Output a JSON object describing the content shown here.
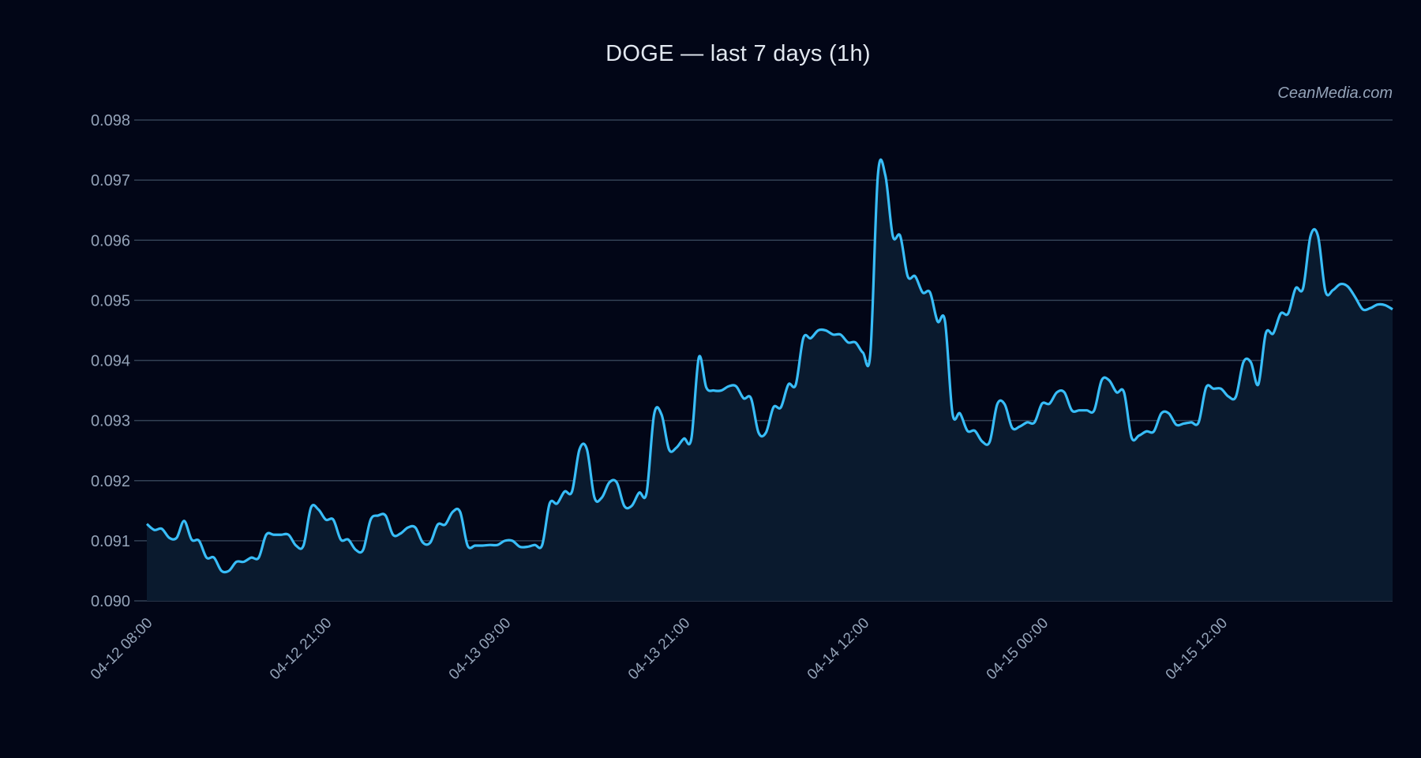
{
  "header": {
    "title": "DOGE — last 7 days (1h)",
    "watermark": "CeanMedia.com"
  },
  "colors": {
    "background": "#020617",
    "line": "#38bdf8",
    "area_fill": "#0a1a2e",
    "grid": "#334155",
    "tick_text": "#94a3b8",
    "title_text": "#e2e8f0"
  },
  "chart_data": {
    "type": "area",
    "title": "DOGE — last 7 days (1h)",
    "xlabel": "",
    "ylabel": "",
    "ylim": [
      0.09,
      0.098
    ],
    "grid": true,
    "legend": null,
    "y_ticks": [
      "0.090",
      "0.091",
      "0.092",
      "0.093",
      "0.094",
      "0.095",
      "0.096",
      "0.097",
      "0.098"
    ],
    "x_ticks": [
      {
        "label": "04-12 08:00",
        "pos": 0.0
      },
      {
        "label": "04-12 21:00",
        "pos": 0.1438
      },
      {
        "label": "04-13 09:00",
        "pos": 0.2876
      },
      {
        "label": "04-13 21:00",
        "pos": 0.4315
      },
      {
        "label": "04-14 12:00",
        "pos": 0.5753
      },
      {
        "label": "04-15 00:00",
        "pos": 0.7191
      },
      {
        "label": "04-15 12:00",
        "pos": 0.8629
      }
    ],
    "series": [
      {
        "name": "DOGE",
        "values": [
          0.09128,
          0.09118,
          0.0912,
          0.09105,
          0.09105,
          0.09133,
          0.09102,
          0.091,
          0.09072,
          0.09072,
          0.0905,
          0.0905,
          0.09065,
          0.09065,
          0.09072,
          0.09072,
          0.0911,
          0.0911,
          0.0911,
          0.0911,
          0.09092,
          0.09092,
          0.09155,
          0.09152,
          0.09135,
          0.09135,
          0.09102,
          0.09102,
          0.09085,
          0.09085,
          0.09135,
          0.09142,
          0.09142,
          0.0911,
          0.09112,
          0.09122,
          0.09122,
          0.09097,
          0.09097,
          0.09127,
          0.09127,
          0.09148,
          0.09148,
          0.09092,
          0.09092,
          0.09092,
          0.09093,
          0.09093,
          0.091,
          0.091,
          0.0909,
          0.0909,
          0.09093,
          0.09093,
          0.09162,
          0.09162,
          0.09182,
          0.09182,
          0.09252,
          0.09252,
          0.09172,
          0.09172,
          0.09197,
          0.09197,
          0.09158,
          0.09158,
          0.0918,
          0.0918,
          0.0931,
          0.0931,
          0.09252,
          0.09255,
          0.0927,
          0.0927,
          0.09405,
          0.09355,
          0.0935,
          0.0935,
          0.09357,
          0.09357,
          0.09337,
          0.09337,
          0.0928,
          0.0928,
          0.09322,
          0.09322,
          0.0936,
          0.0936,
          0.09437,
          0.09437,
          0.0945,
          0.0945,
          0.09443,
          0.09443,
          0.0943,
          0.0943,
          0.09413,
          0.09413,
          0.09708,
          0.09708,
          0.09607,
          0.09607,
          0.0954,
          0.0954,
          0.09513,
          0.09513,
          0.09465,
          0.09465,
          0.09312,
          0.09312,
          0.09283,
          0.09283,
          0.09265,
          0.09265,
          0.09327,
          0.09327,
          0.09288,
          0.0929,
          0.09297,
          0.09297,
          0.09328,
          0.09328,
          0.09347,
          0.09347,
          0.09317,
          0.09317,
          0.09317,
          0.09317,
          0.09367,
          0.09367,
          0.09347,
          0.09347,
          0.09272,
          0.09275,
          0.09282,
          0.09282,
          0.09312,
          0.09312,
          0.09293,
          0.09295,
          0.09297,
          0.09297,
          0.09355,
          0.09353,
          0.09353,
          0.0934,
          0.0934,
          0.09397,
          0.09397,
          0.0936,
          0.09445,
          0.09445,
          0.09478,
          0.09478,
          0.0952,
          0.0952,
          0.09607,
          0.09607,
          0.09515,
          0.09517,
          0.09527,
          0.09523,
          0.09505,
          0.09485,
          0.09487,
          0.09493,
          0.09492,
          0.09485
        ]
      }
    ]
  }
}
